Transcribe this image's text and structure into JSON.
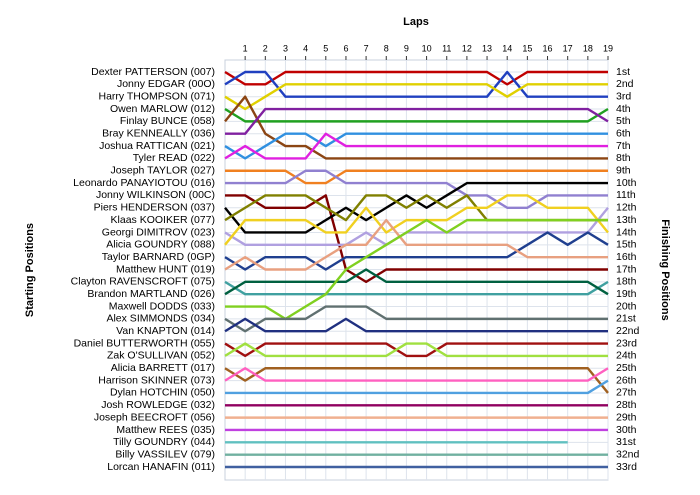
{
  "chart_data": {
    "type": "lap",
    "x_label": "Laps",
    "y_label": "Starting Positions",
    "y2_label": "Finishing Positions",
    "x": [
      0,
      1,
      2,
      3,
      4,
      5,
      6,
      7,
      8,
      9,
      10,
      11,
      12,
      13,
      14,
      15,
      16,
      17,
      18,
      19
    ],
    "xlim": [
      0,
      19
    ],
    "xticks": [
      1,
      2,
      3,
      4,
      5,
      6,
      7,
      8,
      9,
      10,
      11,
      12,
      13,
      14,
      15,
      16,
      17,
      18,
      19
    ],
    "ylim": [
      1,
      33
    ],
    "yticks": [
      {
        "value": 1,
        "label": "1st"
      },
      {
        "value": 2,
        "label": "2nd"
      },
      {
        "value": 3,
        "label": "3rd"
      },
      {
        "value": 4,
        "label": "4th"
      },
      {
        "value": 5,
        "label": "5th"
      },
      {
        "value": 6,
        "label": "6th"
      },
      {
        "value": 7,
        "label": "7th"
      },
      {
        "value": 8,
        "label": "8th"
      },
      {
        "value": 9,
        "label": "9th"
      },
      {
        "value": 10,
        "label": "10th"
      },
      {
        "value": 11,
        "label": "11th"
      },
      {
        "value": 12,
        "label": "12th"
      },
      {
        "value": 13,
        "label": "13th"
      },
      {
        "value": 14,
        "label": "14th"
      },
      {
        "value": 15,
        "label": "15th"
      },
      {
        "value": 16,
        "label": "16th"
      },
      {
        "value": 17,
        "label": "17th"
      },
      {
        "value": 18,
        "label": "18th"
      },
      {
        "value": 19,
        "label": "19th"
      },
      {
        "value": 20,
        "label": "20th"
      },
      {
        "value": 21,
        "label": "21st"
      },
      {
        "value": 22,
        "label": "22nd"
      },
      {
        "value": 23,
        "label": "23rd"
      },
      {
        "value": 24,
        "label": "24th"
      },
      {
        "value": 25,
        "label": "25th"
      },
      {
        "value": 26,
        "label": "26th"
      },
      {
        "value": 27,
        "label": "27th"
      },
      {
        "value": 28,
        "label": "28th"
      },
      {
        "value": 29,
        "label": "29th"
      },
      {
        "value": 30,
        "label": "30th"
      },
      {
        "value": 31,
        "label": "31st"
      },
      {
        "value": 32,
        "label": "32nd"
      },
      {
        "value": 33,
        "label": "33rd"
      }
    ],
    "grid": true,
    "series": [
      {
        "name": "Dexter PATTERSON (007)",
        "color": "#c00000",
        "values": [
          1,
          2,
          2,
          1,
          1,
          1,
          1,
          1,
          1,
          1,
          1,
          1,
          1,
          1,
          2,
          1,
          1,
          1,
          1,
          1
        ]
      },
      {
        "name": "Jonny EDGAR (00O)",
        "color": "#2040c0",
        "values": [
          2,
          1,
          1,
          3,
          3,
          3,
          3,
          3,
          3,
          3,
          3,
          3,
          3,
          3,
          1,
          3,
          3,
          3,
          3,
          3
        ]
      },
      {
        "name": "Harry THOMPSON (071)",
        "color": "#e0d000",
        "values": [
          3,
          4,
          3,
          2,
          2,
          2,
          2,
          2,
          2,
          2,
          2,
          2,
          2,
          2,
          3,
          2,
          2,
          2,
          2,
          2
        ]
      },
      {
        "name": "Owen MARLOW (012)",
        "color": "#20a020",
        "values": [
          4,
          5,
          5,
          5,
          5,
          5,
          5,
          5,
          5,
          5,
          5,
          5,
          5,
          5,
          5,
          5,
          5,
          5,
          5,
          4
        ]
      },
      {
        "name": "Finlay BUNCE (058)",
        "color": "#8b4513",
        "values": [
          5,
          3,
          6,
          7,
          7,
          8,
          8,
          8,
          8,
          8,
          8,
          8,
          8,
          8,
          8,
          8,
          8,
          8,
          8,
          8
        ]
      },
      {
        "name": "Bray KENNEALLY (036)",
        "color": "#8020a0",
        "values": [
          6,
          6,
          4,
          4,
          4,
          4,
          4,
          4,
          4,
          4,
          4,
          4,
          4,
          4,
          4,
          4,
          4,
          4,
          4,
          5
        ]
      },
      {
        "name": "Joshua RATTICAN (021)",
        "color": "#3090e0",
        "values": [
          7,
          8,
          7,
          6,
          6,
          7,
          6,
          6,
          6,
          6,
          6,
          6,
          6,
          6,
          6,
          6,
          6,
          6,
          6,
          6
        ]
      },
      {
        "name": "Tyler READ (022)",
        "color": "#e020e0",
        "values": [
          8,
          7,
          8,
          8,
          8,
          6,
          7,
          7,
          7,
          7,
          7,
          7,
          7,
          7,
          7,
          7,
          7,
          7,
          7,
          7
        ]
      },
      {
        "name": "Joseph TAYLOR (027)",
        "color": "#f08020",
        "values": [
          9,
          9,
          9,
          9,
          10,
          10,
          9,
          9,
          9,
          9,
          9,
          9,
          9,
          9,
          9,
          9,
          9,
          9,
          9,
          9
        ]
      },
      {
        "name": "Leonardo PANAYIOTOU (016)",
        "color": "#9080d0",
        "values": [
          10,
          10,
          10,
          10,
          9,
          9,
          10,
          10,
          10,
          10,
          10,
          10,
          11,
          11,
          12,
          12,
          11,
          11,
          11,
          11
        ]
      },
      {
        "name": "Jonny WILKINSON (00C)",
        "color": "#800000",
        "values": [
          11,
          11,
          12,
          12,
          12,
          11,
          17,
          18,
          17,
          17,
          17,
          17,
          17,
          17,
          17,
          17,
          17,
          17,
          17,
          17
        ]
      },
      {
        "name": "Piers HENDERSON (037)",
        "color": "#000000",
        "values": [
          12,
          14,
          14,
          14,
          14,
          13,
          12,
          13,
          12,
          11,
          12,
          11,
          10,
          10,
          10,
          10,
          10,
          10,
          10,
          10
        ]
      },
      {
        "name": "Klaas KOOIKER (077)",
        "color": "#808000",
        "values": [
          13,
          12,
          11,
          11,
          11,
          12,
          13,
          11,
          11,
          12,
          11,
          12,
          11,
          13,
          13,
          13,
          13,
          13,
          13,
          13
        ]
      },
      {
        "name": "Georgi DIMITROV (023)",
        "color": "#b0a0e0",
        "values": [
          14,
          15,
          15,
          15,
          15,
          15,
          15,
          14,
          15,
          14,
          14,
          14,
          14,
          14,
          14,
          14,
          14,
          14,
          14,
          12
        ]
      },
      {
        "name": "Alicia GOUNDRY (088)",
        "color": "#f0d020",
        "values": [
          15,
          13,
          13,
          13,
          13,
          14,
          14,
          12,
          14,
          13,
          13,
          13,
          12,
          12,
          11,
          11,
          12,
          12,
          12,
          14
        ]
      },
      {
        "name": "Taylor BARNARD (0GP)",
        "color": "#1f3f8f",
        "values": [
          16,
          17,
          16,
          16,
          16,
          17,
          16,
          16,
          16,
          16,
          16,
          16,
          16,
          16,
          16,
          15,
          14,
          15,
          14,
          15
        ]
      },
      {
        "name": "Matthew HUNT (019)",
        "color": "#e8a080",
        "values": [
          17,
          16,
          17,
          17,
          17,
          16,
          15,
          15,
          13,
          15,
          15,
          15,
          15,
          15,
          15,
          16,
          16,
          16,
          16,
          16
        ]
      },
      {
        "name": "Clayton RAVENSCROFT (075)",
        "color": "#40a0a0",
        "values": [
          18,
          19,
          19,
          19,
          19,
          19,
          19,
          19,
          19,
          19,
          19,
          19,
          19,
          19,
          19,
          19,
          19,
          19,
          19,
          18
        ]
      },
      {
        "name": "Brandon MARTLAND (026)",
        "color": "#006040",
        "values": [
          19,
          18,
          18,
          18,
          18,
          18,
          18,
          17,
          18,
          18,
          18,
          18,
          18,
          18,
          18,
          18,
          18,
          18,
          18,
          19
        ]
      },
      {
        "name": "Maxwell DODDS (033)",
        "color": "#80d020",
        "values": [
          20,
          20,
          20,
          21,
          20,
          19,
          17,
          16,
          15,
          14,
          13,
          14,
          13,
          13,
          13,
          13,
          13,
          13,
          13,
          13
        ]
      },
      {
        "name": "Alex SIMMONDS (034)",
        "color": "#607070",
        "values": [
          21,
          22,
          21,
          21,
          21,
          20,
          20,
          20,
          21,
          21,
          21,
          21,
          21,
          21,
          21,
          21,
          21,
          21,
          21,
          21
        ]
      },
      {
        "name": "Van KNAPTON (014)",
        "color": "#203080",
        "values": [
          22,
          21,
          22,
          22,
          22,
          22,
          21,
          22,
          22,
          22,
          22,
          22,
          22,
          22,
          22,
          22,
          22,
          22,
          22,
          22
        ]
      },
      {
        "name": "Daniel BUTTERWORTH (055)",
        "color": "#a01010",
        "values": [
          23,
          24,
          23,
          23,
          23,
          23,
          23,
          23,
          23,
          24,
          24,
          23,
          23,
          23,
          23,
          23,
          23,
          23,
          23,
          23
        ]
      },
      {
        "name": "Zak O'SULLIVAN (052)",
        "color": "#a0e040",
        "values": [
          24,
          23,
          24,
          24,
          24,
          24,
          24,
          24,
          24,
          23,
          23,
          24,
          24,
          24,
          24,
          24,
          24,
          24,
          24,
          24
        ]
      },
      {
        "name": "Alicia BARRETT (017)",
        "color": "#a06020",
        "values": [
          25,
          26,
          25,
          25,
          25,
          25,
          25,
          25,
          25,
          25,
          25,
          25,
          25,
          25,
          25,
          25,
          25,
          25,
          25,
          27
        ]
      },
      {
        "name": "Harrison SKINNER (073)",
        "color": "#ff60c0",
        "values": [
          26,
          25,
          26,
          26,
          26,
          26,
          26,
          26,
          26,
          26,
          26,
          26,
          26,
          26,
          26,
          26,
          26,
          26,
          26,
          25
        ]
      },
      {
        "name": "Dylan HOTCHIN (050)",
        "color": "#50a0e0",
        "values": [
          27,
          27,
          27,
          27,
          27,
          27,
          27,
          27,
          27,
          27,
          27,
          27,
          27,
          27,
          27,
          27,
          27,
          27,
          27,
          26
        ]
      },
      {
        "name": "Josh ROWLEDGE (032)",
        "color": "#900060",
        "values": [
          28,
          28,
          28,
          28,
          28,
          28,
          28,
          28,
          28,
          28,
          28,
          28,
          28,
          28,
          28,
          28,
          28,
          28,
          28,
          28
        ]
      },
      {
        "name": "Joseph BEECROFT (056)",
        "color": "#f0b090",
        "values": [
          29,
          29,
          29,
          29,
          29,
          29,
          29,
          29,
          29,
          29,
          29,
          29,
          29,
          29,
          29,
          29,
          29,
          29,
          29,
          29
        ]
      },
      {
        "name": "Matthew REES (035)",
        "color": "#c040e0",
        "values": [
          30,
          30,
          30,
          30,
          30,
          30,
          30,
          30,
          30,
          30,
          30,
          30,
          30,
          30,
          30,
          30,
          30,
          30,
          30,
          30
        ]
      },
      {
        "name": "Tilly GOUNDRY (044)",
        "color": "#60c0c0",
        "values": [
          31,
          31,
          31,
          31,
          31,
          31,
          31,
          31,
          31,
          31,
          31,
          31,
          31,
          31,
          31,
          31,
          31,
          31,
          null,
          null
        ]
      },
      {
        "name": "Billy VASSILEV (079)",
        "color": "#70b0a0",
        "values": [
          32,
          32,
          32,
          32,
          32,
          32,
          32,
          32,
          32,
          32,
          32,
          32,
          32,
          32,
          32,
          32,
          32,
          32,
          32,
          32
        ]
      },
      {
        "name": "Lorcan HANAFIN (011)",
        "color": "#4060a0",
        "values": [
          33,
          33,
          33,
          33,
          33,
          33,
          33,
          33,
          33,
          33,
          33,
          33,
          33,
          33,
          33,
          33,
          33,
          33,
          33,
          33
        ]
      }
    ]
  }
}
